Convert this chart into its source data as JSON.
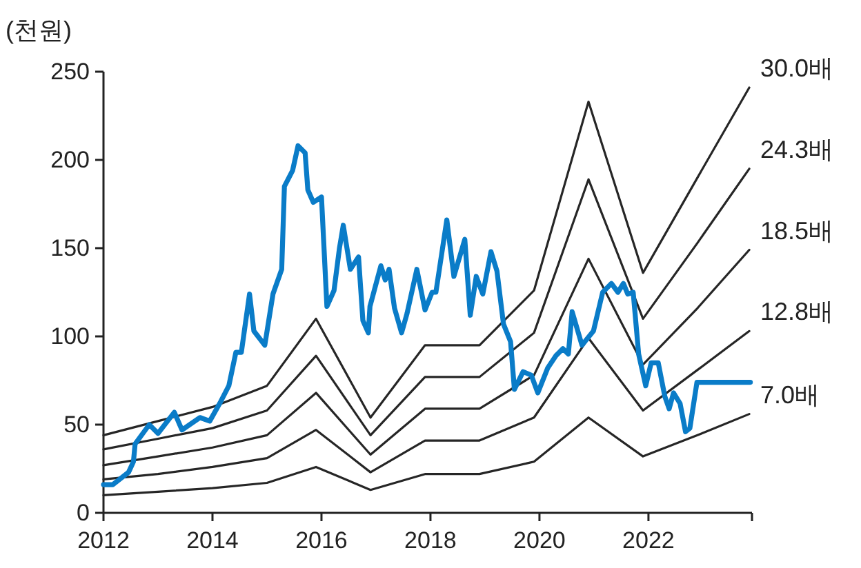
{
  "chart_data": {
    "type": "line",
    "ylabel": "(천원)",
    "xlim": [
      2012,
      2023.9
    ],
    "ylim": [
      0,
      250
    ],
    "xticks": [
      2012,
      2014,
      2016,
      2018,
      2020,
      2022,
      {
        "value": 2023.9,
        "label": null
      }
    ],
    "yticks": [
      0,
      50,
      100,
      150,
      200,
      250
    ],
    "grid": false,
    "legend": false,
    "marker": "none",
    "line_style": "solid",
    "series": [
      {
        "name": "30.0배",
        "color": "#262626",
        "x": [
          2012.0,
          2013.0,
          2014.0,
          2015.0,
          2015.9,
          2016.9,
          2017.9,
          2018.9,
          2019.9,
          2020.9,
          2021.9,
          2022.9,
          2023.85
        ],
        "values": [
          44,
          52,
          60,
          72,
          110,
          54,
          95,
          95,
          126,
          233,
          136,
          190,
          241
        ]
      },
      {
        "name": "24.3배",
        "color": "#262626",
        "x": [
          2012.0,
          2013.0,
          2014.0,
          2015.0,
          2015.9,
          2016.9,
          2017.9,
          2018.9,
          2019.9,
          2020.9,
          2021.9,
          2022.9,
          2023.85
        ],
        "values": [
          36,
          42,
          48,
          58,
          89,
          44,
          77,
          77,
          102,
          189,
          110,
          153,
          195
        ]
      },
      {
        "name": "18.5배",
        "color": "#262626",
        "x": [
          2012.0,
          2013.0,
          2014.0,
          2015.0,
          2015.9,
          2016.9,
          2017.9,
          2018.9,
          2019.9,
          2020.9,
          2021.9,
          2022.9,
          2023.85
        ],
        "values": [
          27,
          32,
          37,
          44,
          68,
          33,
          59,
          59,
          78,
          144,
          84,
          116,
          149
        ]
      },
      {
        "name": "12.8배",
        "color": "#262626",
        "x": [
          2012.0,
          2013.0,
          2014.0,
          2015.0,
          2015.9,
          2016.9,
          2017.9,
          2018.9,
          2019.9,
          2020.9,
          2021.9,
          2022.9,
          2023.85
        ],
        "values": [
          19,
          22,
          26,
          31,
          47,
          23,
          41,
          41,
          54,
          99,
          58,
          81,
          103
        ]
      },
      {
        "name": "7.0배",
        "color": "#262626",
        "x": [
          2012.0,
          2013.0,
          2014.0,
          2015.0,
          2015.9,
          2016.9,
          2017.9,
          2018.9,
          2019.9,
          2020.9,
          2021.9,
          2022.9,
          2023.85
        ],
        "values": [
          10,
          12,
          14,
          17,
          26,
          13,
          22,
          22,
          29,
          54,
          32,
          44,
          56
        ]
      },
      {
        "color": "#0a7cc8",
        "x": [
          2012.0,
          2012.17,
          2012.46,
          2012.55,
          2012.58,
          2012.84,
          2013.0,
          2013.3,
          2013.44,
          2013.77,
          2013.95,
          2014.15,
          2014.3,
          2014.43,
          2014.53,
          2014.68,
          2014.76,
          2014.96,
          2015.11,
          2015.27,
          2015.32,
          2015.47,
          2015.57,
          2015.7,
          2015.75,
          2015.85,
          2016.0,
          2016.1,
          2016.23,
          2016.33,
          2016.4,
          2016.53,
          2016.68,
          2016.76,
          2016.86,
          2016.89,
          2017.09,
          2017.17,
          2017.24,
          2017.34,
          2017.47,
          2017.57,
          2017.75,
          2017.9,
          2018.03,
          2018.1,
          2018.3,
          2018.43,
          2018.63,
          2018.73,
          2018.84,
          2018.96,
          2019.11,
          2019.22,
          2019.34,
          2019.47,
          2019.54,
          2019.7,
          2019.85,
          2019.97,
          2020.15,
          2020.3,
          2020.43,
          2020.53,
          2020.6,
          2020.78,
          2020.99,
          2021.16,
          2021.32,
          2021.44,
          2021.54,
          2021.62,
          2021.72,
          2021.82,
          2021.95,
          2022.05,
          2022.18,
          2022.3,
          2022.38,
          2022.46,
          2022.58,
          2022.68,
          2022.76,
          2022.89,
          2023.87
        ],
        "values": [
          16,
          16,
          23,
          29,
          39,
          50,
          45,
          57,
          47,
          54,
          52,
          63,
          72,
          91,
          91,
          124,
          103,
          95,
          124,
          138,
          185,
          194,
          208,
          204,
          183,
          176,
          179,
          117,
          126,
          150,
          163,
          138,
          145,
          109,
          102,
          117,
          140,
          132,
          138,
          116,
          102,
          113,
          138,
          115,
          125,
          125,
          166,
          134,
          155,
          112,
          134,
          124,
          148,
          137,
          107,
          97,
          70,
          80,
          78,
          68,
          82,
          89,
          93,
          90,
          114,
          95,
          103,
          125,
          130,
          125,
          130,
          124,
          125,
          90,
          72,
          85,
          85,
          66,
          59,
          68,
          62,
          46,
          48,
          74,
          74
        ]
      }
    ]
  }
}
